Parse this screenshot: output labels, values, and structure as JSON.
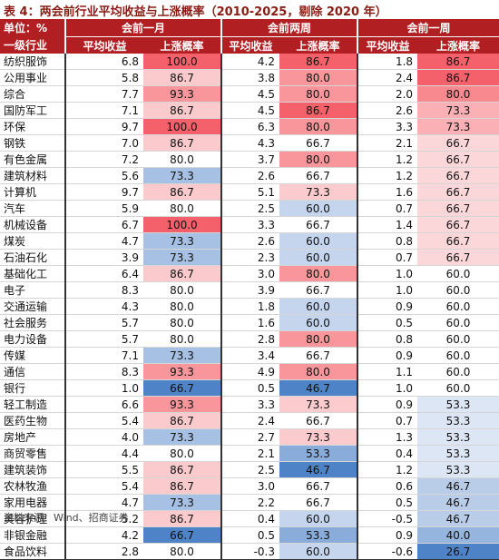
{
  "caption": "表 4：两会前行业平均收益与上涨概率（2010-2025，剔除 2020 年）",
  "unit_label": "单位：%",
  "group_headers": [
    "会前一月",
    "会前两周",
    "会前一周"
  ],
  "column_headers": [
    "一级行业",
    "平均收益",
    "上涨概率",
    "平均收益",
    "上涨概率",
    "平均收益",
    "上涨概率"
  ],
  "colors": {
    "header_bg": "#b21f22",
    "high": "#f4616a",
    "low": "#4f83c8",
    "neutral": "#ffffff"
  },
  "rows": [
    {
      "name": "纺织服饰",
      "m1_avg": "6.8",
      "m1_prob": "100.0",
      "w2_avg": "4.2",
      "w2_prob": "86.7",
      "w1_avg": "1.8",
      "w1_prob": "86.7"
    },
    {
      "name": "公用事业",
      "m1_avg": "5.8",
      "m1_prob": "86.7",
      "w2_avg": "3.8",
      "w2_prob": "80.0",
      "w1_avg": "2.4",
      "w1_prob": "86.7"
    },
    {
      "name": "综合",
      "m1_avg": "7.7",
      "m1_prob": "93.3",
      "w2_avg": "4.5",
      "w2_prob": "80.0",
      "w1_avg": "2.0",
      "w1_prob": "80.0"
    },
    {
      "name": "国防军工",
      "m1_avg": "7.1",
      "m1_prob": "86.7",
      "w2_avg": "4.5",
      "w2_prob": "86.7",
      "w1_avg": "2.6",
      "w1_prob": "73.3"
    },
    {
      "name": "环保",
      "m1_avg": "9.7",
      "m1_prob": "100.0",
      "w2_avg": "6.3",
      "w2_prob": "80.0",
      "w1_avg": "3.3",
      "w1_prob": "73.3"
    },
    {
      "name": "钢铁",
      "m1_avg": "7.0",
      "m1_prob": "86.7",
      "w2_avg": "4.3",
      "w2_prob": "66.7",
      "w1_avg": "2.1",
      "w1_prob": "66.7"
    },
    {
      "name": "有色金属",
      "m1_avg": "7.2",
      "m1_prob": "80.0",
      "w2_avg": "3.7",
      "w2_prob": "80.0",
      "w1_avg": "1.2",
      "w1_prob": "66.7"
    },
    {
      "name": "建筑材料",
      "m1_avg": "5.6",
      "m1_prob": "73.3",
      "w2_avg": "2.6",
      "w2_prob": "66.7",
      "w1_avg": "1.2",
      "w1_prob": "66.7"
    },
    {
      "name": "计算机",
      "m1_avg": "9.7",
      "m1_prob": "86.7",
      "w2_avg": "5.1",
      "w2_prob": "73.3",
      "w1_avg": "1.6",
      "w1_prob": "66.7"
    },
    {
      "name": "汽车",
      "m1_avg": "5.9",
      "m1_prob": "80.0",
      "w2_avg": "2.5",
      "w2_prob": "60.0",
      "w1_avg": "0.7",
      "w1_prob": "66.7"
    },
    {
      "name": "机械设备",
      "m1_avg": "6.7",
      "m1_prob": "100.0",
      "w2_avg": "3.3",
      "w2_prob": "66.7",
      "w1_avg": "1.4",
      "w1_prob": "66.7"
    },
    {
      "name": "煤炭",
      "m1_avg": "4.7",
      "m1_prob": "73.3",
      "w2_avg": "2.6",
      "w2_prob": "60.0",
      "w1_avg": "0.8",
      "w1_prob": "66.7"
    },
    {
      "name": "石油石化",
      "m1_avg": "3.9",
      "m1_prob": "73.3",
      "w2_avg": "2.3",
      "w2_prob": "60.0",
      "w1_avg": "0.7",
      "w1_prob": "66.7"
    },
    {
      "name": "基础化工",
      "m1_avg": "6.4",
      "m1_prob": "86.7",
      "w2_avg": "3.0",
      "w2_prob": "80.0",
      "w1_avg": "1.0",
      "w1_prob": "60.0"
    },
    {
      "name": "电子",
      "m1_avg": "8.3",
      "m1_prob": "80.0",
      "w2_avg": "3.9",
      "w2_prob": "66.7",
      "w1_avg": "1.0",
      "w1_prob": "60.0"
    },
    {
      "name": "交通运输",
      "m1_avg": "4.3",
      "m1_prob": "80.0",
      "w2_avg": "1.8",
      "w2_prob": "60.0",
      "w1_avg": "0.9",
      "w1_prob": "60.0"
    },
    {
      "name": "社会服务",
      "m1_avg": "5.7",
      "m1_prob": "80.0",
      "w2_avg": "1.6",
      "w2_prob": "60.0",
      "w1_avg": "0.5",
      "w1_prob": "60.0"
    },
    {
      "name": "电力设备",
      "m1_avg": "5.7",
      "m1_prob": "80.0",
      "w2_avg": "2.8",
      "w2_prob": "80.0",
      "w1_avg": "0.8",
      "w1_prob": "60.0"
    },
    {
      "name": "传媒",
      "m1_avg": "7.1",
      "m1_prob": "73.3",
      "w2_avg": "3.4",
      "w2_prob": "66.7",
      "w1_avg": "0.9",
      "w1_prob": "60.0"
    },
    {
      "name": "通信",
      "m1_avg": "8.3",
      "m1_prob": "93.3",
      "w2_avg": "4.9",
      "w2_prob": "80.0",
      "w1_avg": "1.1",
      "w1_prob": "60.0"
    },
    {
      "name": "银行",
      "m1_avg": "1.0",
      "m1_prob": "66.7",
      "w2_avg": "0.5",
      "w2_prob": "46.7",
      "w1_avg": "1.0",
      "w1_prob": "60.0"
    },
    {
      "name": "轻工制造",
      "m1_avg": "6.6",
      "m1_prob": "93.3",
      "w2_avg": "3.3",
      "w2_prob": "73.3",
      "w1_avg": "0.9",
      "w1_prob": "53.3"
    },
    {
      "name": "医药生物",
      "m1_avg": "5.4",
      "m1_prob": "86.7",
      "w2_avg": "2.4",
      "w2_prob": "66.7",
      "w1_avg": "0.7",
      "w1_prob": "53.3"
    },
    {
      "name": "房地产",
      "m1_avg": "4.0",
      "m1_prob": "73.3",
      "w2_avg": "2.7",
      "w2_prob": "73.3",
      "w1_avg": "1.3",
      "w1_prob": "53.3"
    },
    {
      "name": "商贸零售",
      "m1_avg": "4.4",
      "m1_prob": "80.0",
      "w2_avg": "2.1",
      "w2_prob": "53.3",
      "w1_avg": "0.4",
      "w1_prob": "53.3"
    },
    {
      "name": "建筑装饰",
      "m1_avg": "5.5",
      "m1_prob": "86.7",
      "w2_avg": "2.5",
      "w2_prob": "46.7",
      "w1_avg": "1.2",
      "w1_prob": "53.3"
    },
    {
      "name": "农林牧渔",
      "m1_avg": "5.4",
      "m1_prob": "86.7",
      "w2_avg": "3.0",
      "w2_prob": "66.7",
      "w1_avg": "0.6",
      "w1_prob": "46.7"
    },
    {
      "name": "家用电器",
      "m1_avg": "4.7",
      "m1_prob": "73.3",
      "w2_avg": "2.2",
      "w2_prob": "66.7",
      "w1_avg": "0.5",
      "w1_prob": "46.7"
    },
    {
      "name": "美容护理",
      "m1_avg": "5.2",
      "m1_prob": "86.7",
      "w2_avg": "0.4",
      "w2_prob": "60.0",
      "w1_avg": "-0.5",
      "w1_prob": "46.7"
    },
    {
      "name": "非银金融",
      "m1_avg": "4.2",
      "m1_prob": "66.7",
      "w2_avg": "0.5",
      "w2_prob": "53.3",
      "w1_avg": "0.9",
      "w1_prob": "40.0"
    },
    {
      "name": "食品饮料",
      "m1_avg": "2.8",
      "m1_prob": "80.0",
      "w2_avg": "-0.3",
      "w2_prob": "60.0",
      "w1_avg": "-0.6",
      "w1_prob": "26.7"
    }
  ],
  "source": "资料来源：Wind、招商证券"
}
